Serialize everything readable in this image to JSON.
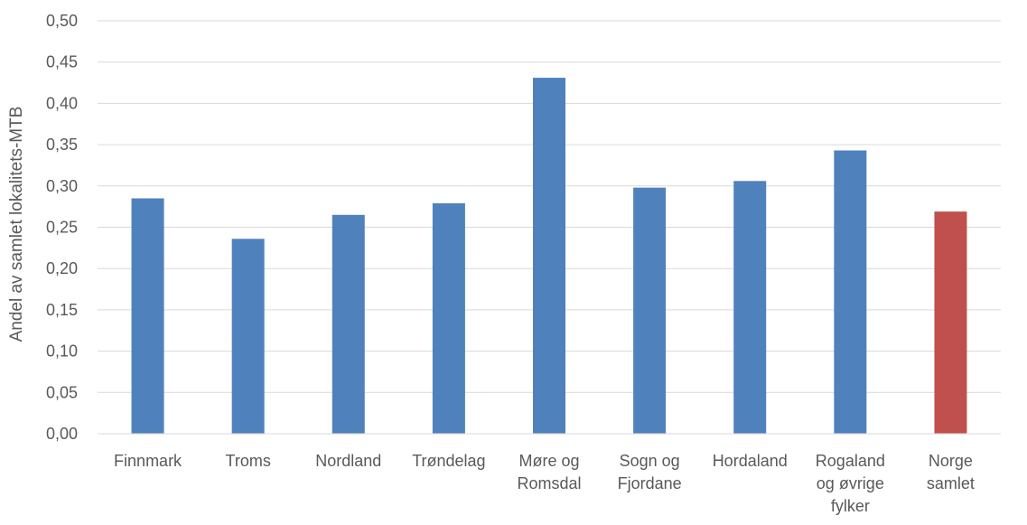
{
  "chart_data": {
    "type": "bar",
    "title": "",
    "xlabel": "",
    "ylabel": "Andel av samlet lokalitets-MTB",
    "categories": [
      [
        "Finnmark"
      ],
      [
        "Troms"
      ],
      [
        "Nordland"
      ],
      [
        "Trøndelag"
      ],
      [
        "Møre og",
        "Romsdal"
      ],
      [
        "Sogn og",
        "Fjordane"
      ],
      [
        "Hordaland"
      ],
      [
        "Rogaland",
        "og øvrige",
        "fylker"
      ],
      [
        "Norge",
        "samlet"
      ]
    ],
    "values": [
      0.285,
      0.236,
      0.265,
      0.279,
      0.431,
      0.298,
      0.306,
      0.343,
      0.269
    ],
    "bar_colors": [
      "#4F81BD",
      "#4F81BD",
      "#4F81BD",
      "#4F81BD",
      "#4F81BD",
      "#4F81BD",
      "#4F81BD",
      "#4F81BD",
      "#C0504D"
    ],
    "ylim": [
      0,
      0.5
    ],
    "yticks": [
      "0,00",
      "0,05",
      "0,10",
      "0,15",
      "0,20",
      "0,25",
      "0,30",
      "0,35",
      "0,40",
      "0,45",
      "0,50"
    ],
    "grid": true,
    "legend": "none",
    "colors": {
      "gridline": "#D9D9D9",
      "axis_text": "#595959"
    }
  }
}
